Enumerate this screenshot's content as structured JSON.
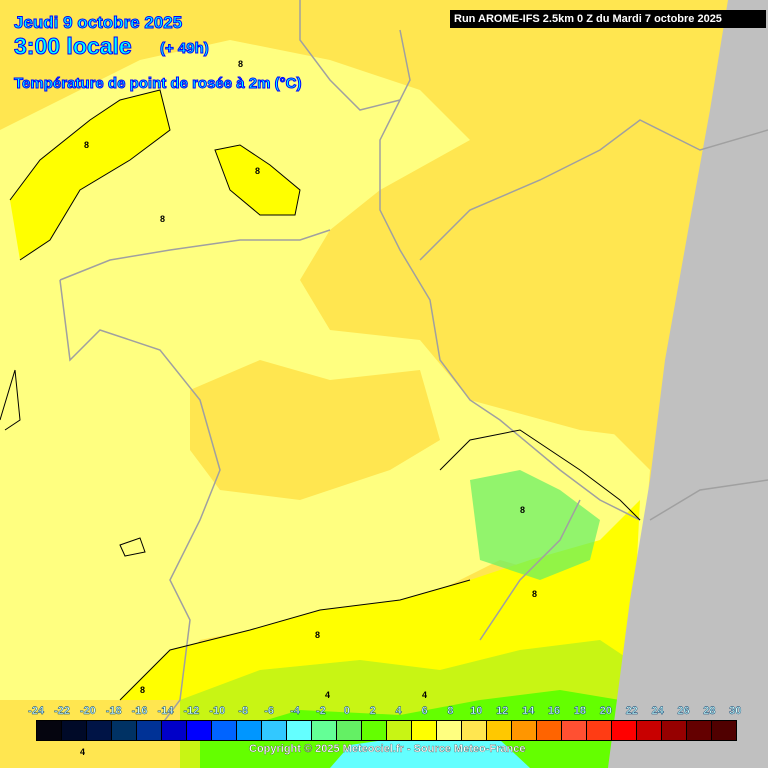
{
  "header": {
    "date": "Jeudi 9 octobre 2025",
    "time": "3:00 locale",
    "lead": "(+ 49h)",
    "parameter": "Température de point de rosée à 2m (°C)"
  },
  "run_info": "Run AROME-IFS 2.5km 0 Z du Mardi 7 octobre 2025",
  "copyright": "Copyright © 2025 Meteociel.fr - Source Meteo-France",
  "legend": {
    "ticks": [
      "-24",
      "-22",
      "-20",
      "-18",
      "-16",
      "-14",
      "-12",
      "-10",
      "-8",
      "-6",
      "-4",
      "-2",
      "0",
      "2",
      "4",
      "6",
      "8",
      "10",
      "12",
      "14",
      "16",
      "18",
      "20",
      "22",
      "24",
      "26",
      "28",
      "30"
    ],
    "colors": [
      "#05050f",
      "#000a28",
      "#001446",
      "#003264",
      "#003296",
      "#0000c8",
      "#0000ff",
      "#0064ff",
      "#0096ff",
      "#32c8ff",
      "#64ffff",
      "#64ff96",
      "#64f064",
      "#64ff00",
      "#c8f514",
      "#ffff00",
      "#ffff80",
      "#ffe650",
      "#ffc800",
      "#ff9600",
      "#ff6400",
      "#ff5032",
      "#ff3c14",
      "#ff0000",
      "#c80000",
      "#960000",
      "#640000",
      "#500000"
    ]
  },
  "map": {
    "contour_labels": [
      "8",
      "8",
      "8",
      "8",
      "8",
      "8",
      "8",
      "8",
      "4",
      "4",
      "4"
    ],
    "colors": {
      "no_data": "#c0c0c0",
      "border": "#a0a0a0",
      "contour": "#000000"
    }
  }
}
